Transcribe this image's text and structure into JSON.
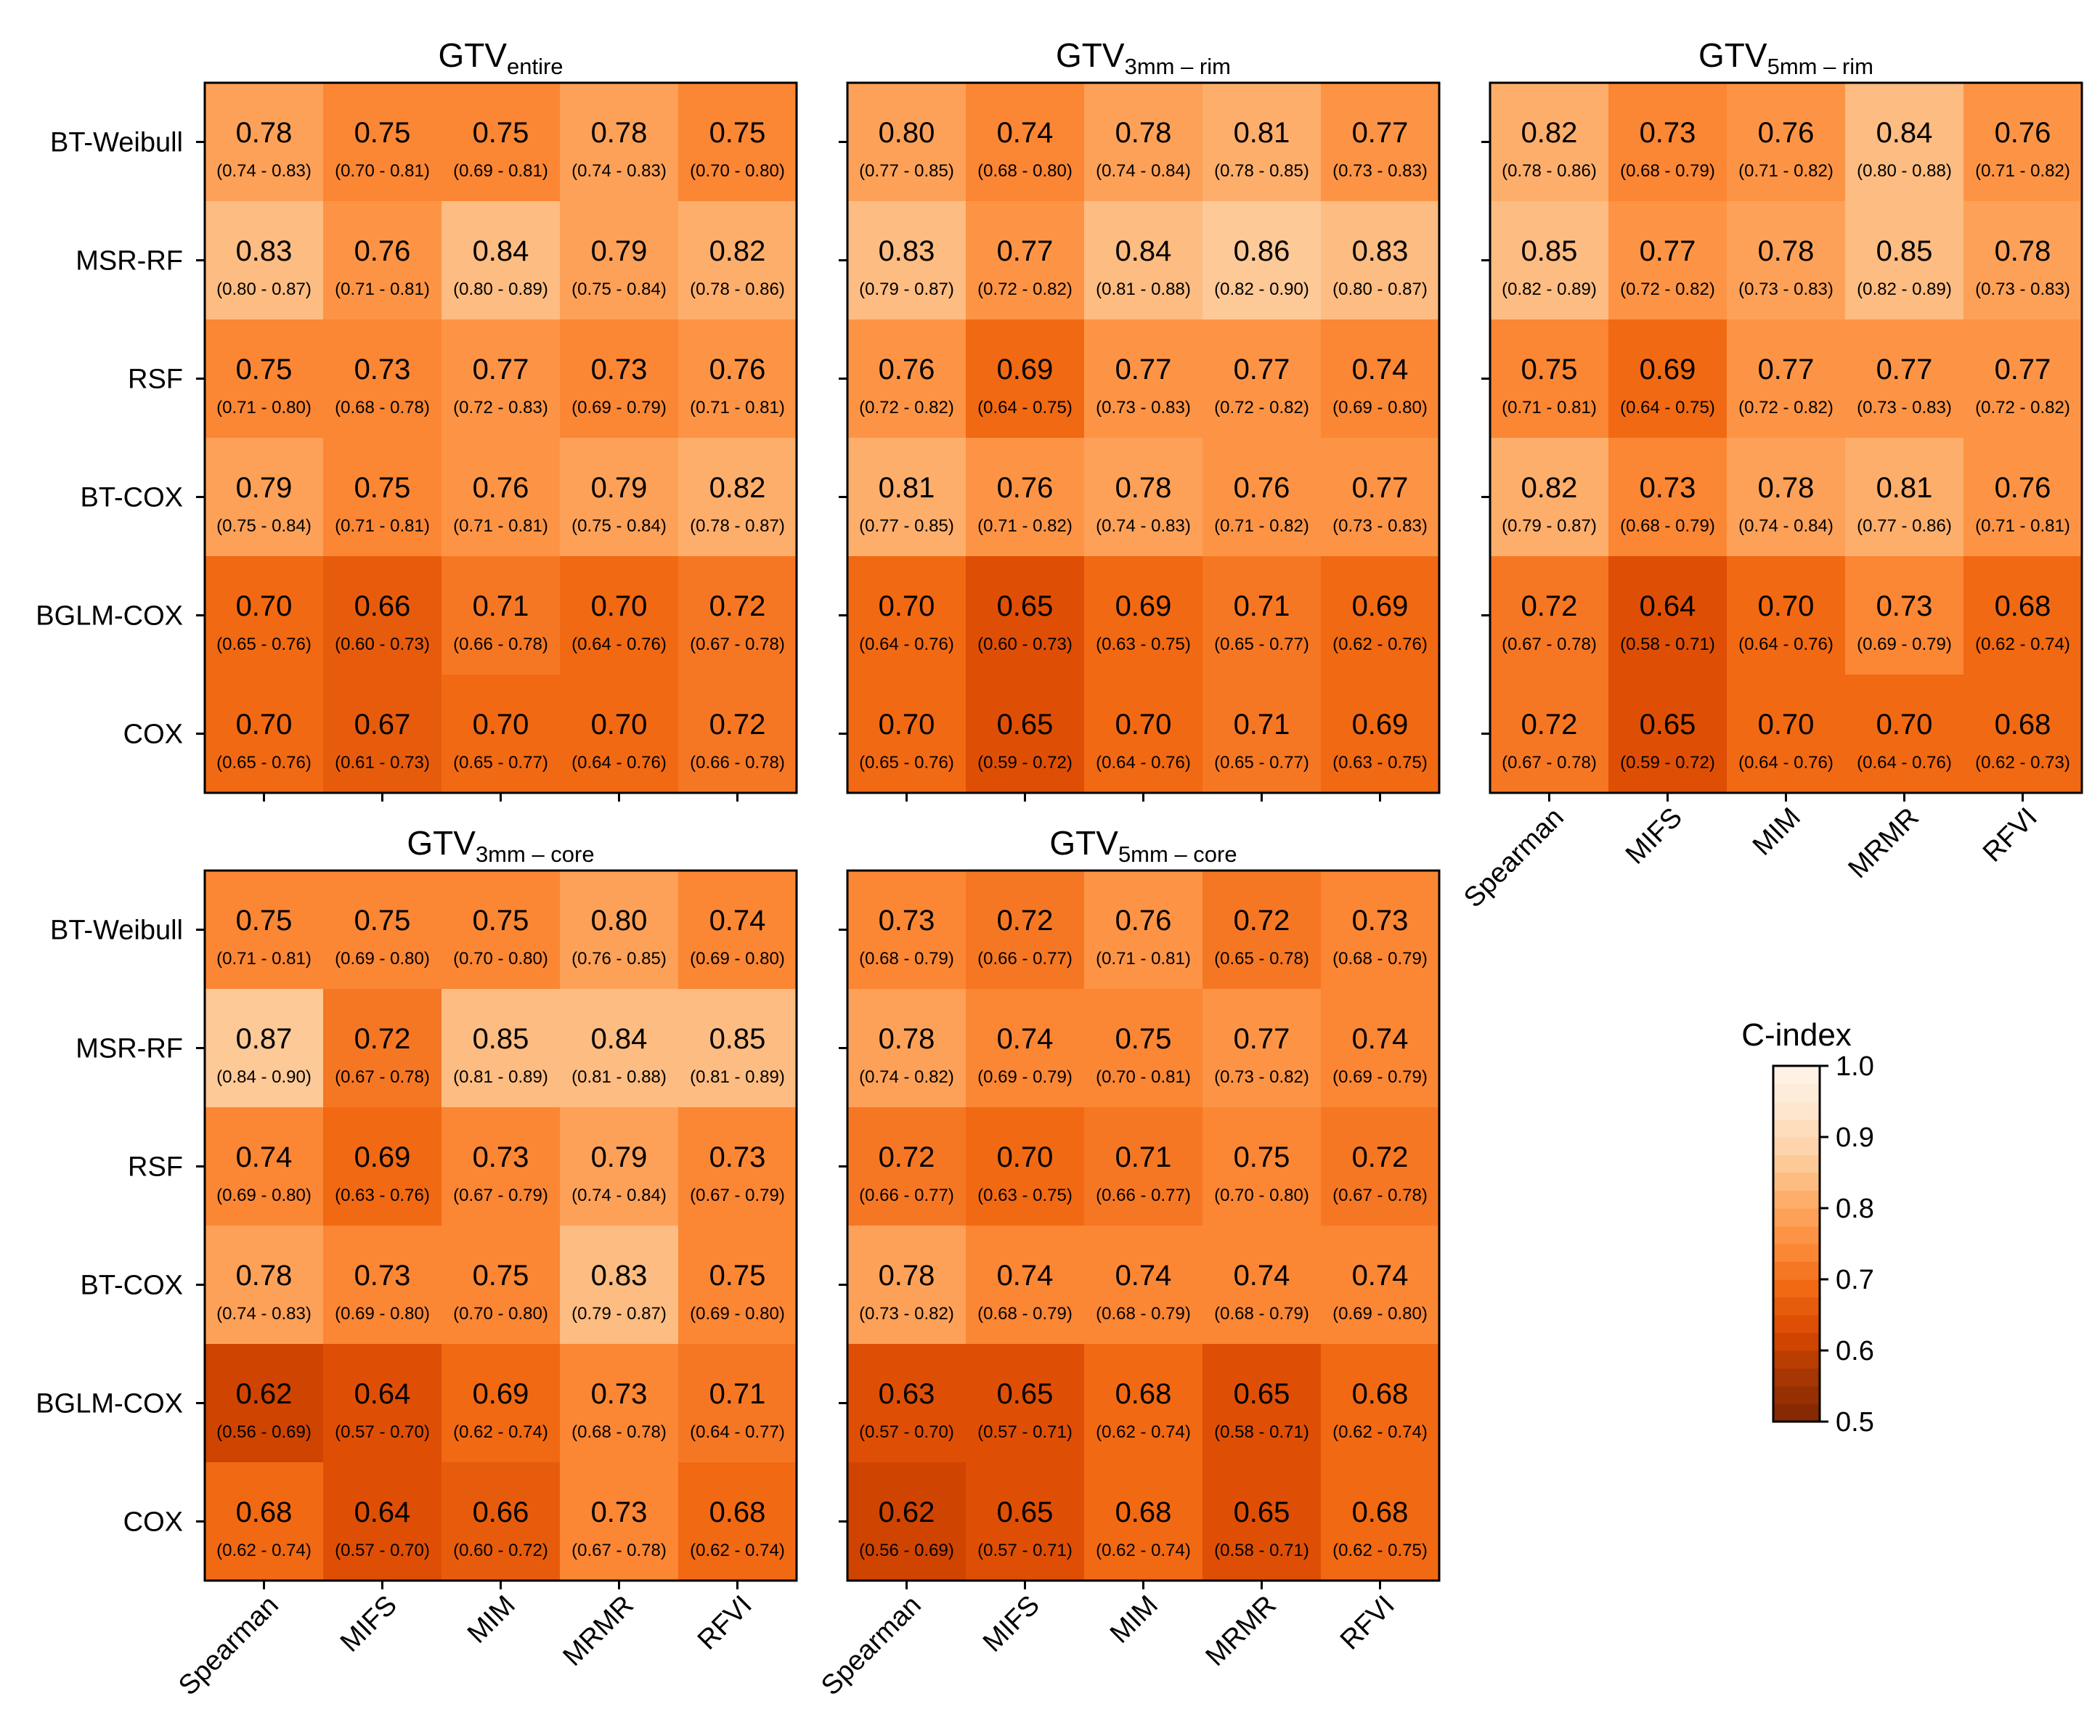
{
  "chart_data": {
    "type": "heatmap",
    "value_label": "C-index",
    "rows": [
      "BT-Weibull",
      "MSR-RF",
      "RSF",
      "BT-COX",
      "BGLM-COX",
      "COX"
    ],
    "columns": [
      "Spearman",
      "MIFS",
      "MIM",
      "MRMR",
      "RFVI"
    ],
    "colorbar": {
      "title": "C-index",
      "range": [
        0.5,
        1.0
      ],
      "ticks": [
        "0.5",
        "0.6",
        "0.7",
        "0.8",
        "0.9",
        "1.0"
      ],
      "colormap": "Oranges (reversed, discrete 0.025 steps)"
    },
    "panels": [
      {
        "title_main": "GTV",
        "title_sub": "entire",
        "values": [
          [
            "0.78",
            "0.75",
            "0.75",
            "0.78",
            "0.75"
          ],
          [
            "0.83",
            "0.76",
            "0.84",
            "0.79",
            "0.82"
          ],
          [
            "0.75",
            "0.73",
            "0.77",
            "0.73",
            "0.76"
          ],
          [
            "0.79",
            "0.75",
            "0.76",
            "0.79",
            "0.82"
          ],
          [
            "0.70",
            "0.66",
            "0.71",
            "0.70",
            "0.72"
          ],
          [
            "0.70",
            "0.67",
            "0.70",
            "0.70",
            "0.72"
          ]
        ],
        "ci": [
          [
            "(0.74 - 0.83)",
            "(0.70 - 0.81)",
            "(0.69 - 0.81)",
            "(0.74 - 0.83)",
            "(0.70 - 0.80)"
          ],
          [
            "(0.80 - 0.87)",
            "(0.71 - 0.81)",
            "(0.80 - 0.89)",
            "(0.75 - 0.84)",
            "(0.78 - 0.86)"
          ],
          [
            "(0.71 - 0.80)",
            "(0.68 - 0.78)",
            "(0.72 - 0.83)",
            "(0.69 - 0.79)",
            "(0.71 - 0.81)"
          ],
          [
            "(0.75 - 0.84)",
            "(0.71 - 0.81)",
            "(0.71 - 0.81)",
            "(0.75 - 0.84)",
            "(0.78 - 0.87)"
          ],
          [
            "(0.65 - 0.76)",
            "(0.60 - 0.73)",
            "(0.66 - 0.78)",
            "(0.64 - 0.76)",
            "(0.67 - 0.78)"
          ],
          [
            "(0.65 - 0.76)",
            "(0.61 - 0.73)",
            "(0.65 - 0.77)",
            "(0.64 - 0.76)",
            "(0.66 - 0.78)"
          ]
        ]
      },
      {
        "title_main": "GTV",
        "title_sub": "3mm – rim",
        "values": [
          [
            "0.80",
            "0.74",
            "0.78",
            "0.81",
            "0.77"
          ],
          [
            "0.83",
            "0.77",
            "0.84",
            "0.86",
            "0.83"
          ],
          [
            "0.76",
            "0.69",
            "0.77",
            "0.77",
            "0.74"
          ],
          [
            "0.81",
            "0.76",
            "0.78",
            "0.76",
            "0.77"
          ],
          [
            "0.70",
            "0.65",
            "0.69",
            "0.71",
            "0.69"
          ],
          [
            "0.70",
            "0.65",
            "0.70",
            "0.71",
            "0.69"
          ]
        ],
        "ci": [
          [
            "(0.77 - 0.85)",
            "(0.68 - 0.80)",
            "(0.74 - 0.84)",
            "(0.78 - 0.85)",
            "(0.73 - 0.83)"
          ],
          [
            "(0.79 - 0.87)",
            "(0.72 - 0.82)",
            "(0.81 - 0.88)",
            "(0.82 - 0.90)",
            "(0.80 - 0.87)"
          ],
          [
            "(0.72 - 0.82)",
            "(0.64 - 0.75)",
            "(0.73 - 0.83)",
            "(0.72 - 0.82)",
            "(0.69 - 0.80)"
          ],
          [
            "(0.77 - 0.85)",
            "(0.71 - 0.82)",
            "(0.74 - 0.83)",
            "(0.71 - 0.82)",
            "(0.73 - 0.83)"
          ],
          [
            "(0.64 - 0.76)",
            "(0.60 - 0.73)",
            "(0.63 - 0.75)",
            "(0.65 - 0.77)",
            "(0.62 - 0.76)"
          ],
          [
            "(0.65 - 0.76)",
            "(0.59 - 0.72)",
            "(0.64 - 0.76)",
            "(0.65 - 0.77)",
            "(0.63 - 0.75)"
          ]
        ]
      },
      {
        "title_main": "GTV",
        "title_sub": "5mm – rim",
        "values": [
          [
            "0.82",
            "0.73",
            "0.76",
            "0.84",
            "0.76"
          ],
          [
            "0.85",
            "0.77",
            "0.78",
            "0.85",
            "0.78"
          ],
          [
            "0.75",
            "0.69",
            "0.77",
            "0.77",
            "0.77"
          ],
          [
            "0.82",
            "0.73",
            "0.78",
            "0.81",
            "0.76"
          ],
          [
            "0.72",
            "0.64",
            "0.70",
            "0.73",
            "0.68"
          ],
          [
            "0.72",
            "0.65",
            "0.70",
            "0.70",
            "0.68"
          ]
        ],
        "ci": [
          [
            "(0.78 - 0.86)",
            "(0.68 - 0.79)",
            "(0.71 - 0.82)",
            "(0.80 - 0.88)",
            "(0.71 - 0.82)"
          ],
          [
            "(0.82 - 0.89)",
            "(0.72 - 0.82)",
            "(0.73 - 0.83)",
            "(0.82 - 0.89)",
            "(0.73 - 0.83)"
          ],
          [
            "(0.71 - 0.81)",
            "(0.64 - 0.75)",
            "(0.72 - 0.82)",
            "(0.73 - 0.83)",
            "(0.72 - 0.82)"
          ],
          [
            "(0.79 - 0.87)",
            "(0.68 - 0.79)",
            "(0.74 - 0.84)",
            "(0.77 - 0.86)",
            "(0.71 - 0.81)"
          ],
          [
            "(0.67 - 0.78)",
            "(0.58 - 0.71)",
            "(0.64 - 0.76)",
            "(0.69 - 0.79)",
            "(0.62 - 0.74)"
          ],
          [
            "(0.67 - 0.78)",
            "(0.59 - 0.72)",
            "(0.64 - 0.76)",
            "(0.64 - 0.76)",
            "(0.62 - 0.73)"
          ]
        ]
      },
      {
        "title_main": "GTV",
        "title_sub": "3mm – core",
        "values": [
          [
            "0.75",
            "0.75",
            "0.75",
            "0.80",
            "0.74"
          ],
          [
            "0.87",
            "0.72",
            "0.85",
            "0.84",
            "0.85"
          ],
          [
            "0.74",
            "0.69",
            "0.73",
            "0.79",
            "0.73"
          ],
          [
            "0.78",
            "0.73",
            "0.75",
            "0.83",
            "0.75"
          ],
          [
            "0.62",
            "0.64",
            "0.69",
            "0.73",
            "0.71"
          ],
          [
            "0.68",
            "0.64",
            "0.66",
            "0.73",
            "0.68"
          ]
        ],
        "ci": [
          [
            "(0.71 - 0.81)",
            "(0.69 - 0.80)",
            "(0.70 - 0.80)",
            "(0.76 - 0.85)",
            "(0.69 - 0.80)"
          ],
          [
            "(0.84 - 0.90)",
            "(0.67 - 0.78)",
            "(0.81 - 0.89)",
            "(0.81 - 0.88)",
            "(0.81 - 0.89)"
          ],
          [
            "(0.69 - 0.80)",
            "(0.63 - 0.76)",
            "(0.67 - 0.79)",
            "(0.74 - 0.84)",
            "(0.67 - 0.79)"
          ],
          [
            "(0.74 - 0.83)",
            "(0.69 - 0.80)",
            "(0.70 - 0.80)",
            "(0.79 - 0.87)",
            "(0.69 - 0.80)"
          ],
          [
            "(0.56 - 0.69)",
            "(0.57 - 0.70)",
            "(0.62 - 0.74)",
            "(0.68 - 0.78)",
            "(0.64 - 0.77)"
          ],
          [
            "(0.62 - 0.74)",
            "(0.57 - 0.70)",
            "(0.60 - 0.72)",
            "(0.67 - 0.78)",
            "(0.62 - 0.74)"
          ]
        ]
      },
      {
        "title_main": "GTV",
        "title_sub": "5mm – core",
        "values": [
          [
            "0.73",
            "0.72",
            "0.76",
            "0.72",
            "0.73"
          ],
          [
            "0.78",
            "0.74",
            "0.75",
            "0.77",
            "0.74"
          ],
          [
            "0.72",
            "0.70",
            "0.71",
            "0.75",
            "0.72"
          ],
          [
            "0.78",
            "0.74",
            "0.74",
            "0.74",
            "0.74"
          ],
          [
            "0.63",
            "0.65",
            "0.68",
            "0.65",
            "0.68"
          ],
          [
            "0.62",
            "0.65",
            "0.68",
            "0.65",
            "0.68"
          ]
        ],
        "ci": [
          [
            "(0.68 - 0.79)",
            "(0.66 - 0.77)",
            "(0.71 - 0.81)",
            "(0.65 - 0.78)",
            "(0.68 - 0.79)"
          ],
          [
            "(0.74 - 0.82)",
            "(0.69 - 0.79)",
            "(0.70 - 0.81)",
            "(0.73 - 0.82)",
            "(0.69 - 0.79)"
          ],
          [
            "(0.66 - 0.77)",
            "(0.63 - 0.75)",
            "(0.66 - 0.77)",
            "(0.70 - 0.80)",
            "(0.67 - 0.78)"
          ],
          [
            "(0.73 - 0.82)",
            "(0.68 - 0.79)",
            "(0.68 - 0.79)",
            "(0.68 - 0.79)",
            "(0.69 - 0.80)"
          ],
          [
            "(0.57 - 0.70)",
            "(0.57 - 0.71)",
            "(0.62 - 0.74)",
            "(0.58 - 0.71)",
            "(0.62 - 0.74)"
          ],
          [
            "(0.56 - 0.69)",
            "(0.57 - 0.71)",
            "(0.62 - 0.74)",
            "(0.58 - 0.71)",
            "(0.62 - 0.75)"
          ]
        ]
      }
    ]
  }
}
